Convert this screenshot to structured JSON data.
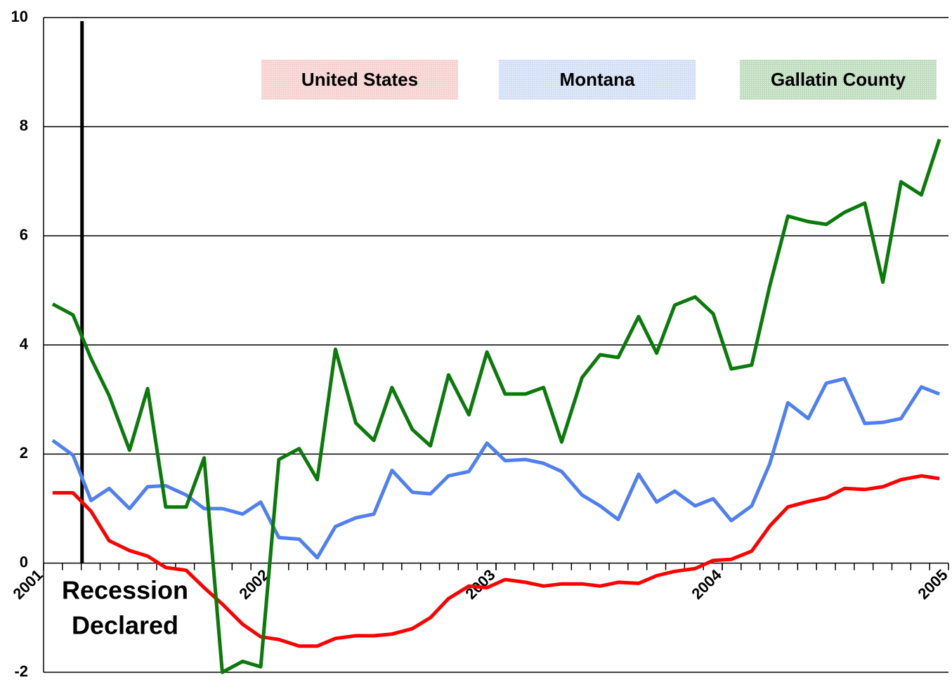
{
  "chart_data": {
    "type": "line",
    "x": [
      2001.04,
      2001.13,
      2001.21,
      2001.29,
      2001.38,
      2001.46,
      2001.54,
      2001.63,
      2001.71,
      2001.79,
      2001.88,
      2001.96,
      2002.04,
      2002.13,
      2002.21,
      2002.29,
      2002.38,
      2002.46,
      2002.54,
      2002.63,
      2002.71,
      2002.79,
      2002.88,
      2002.96,
      2003.04,
      2003.13,
      2003.21,
      2003.29,
      2003.38,
      2003.46,
      2003.54,
      2003.63,
      2003.71,
      2003.79,
      2003.88,
      2003.96,
      2004.04,
      2004.13,
      2004.21,
      2004.29,
      2004.38,
      2004.46,
      2004.54,
      2004.63,
      2004.71,
      2004.79,
      2004.88,
      2004.96
    ],
    "series": [
      {
        "name": "United States",
        "color": "#ff0000",
        "legend_color": "#f4b8b8",
        "values": [
          1.29,
          1.29,
          0.95,
          0.41,
          0.23,
          0.13,
          -0.08,
          -0.13,
          -0.45,
          -0.75,
          -1.12,
          -1.35,
          -1.4,
          -1.52,
          -1.52,
          -1.38,
          -1.33,
          -1.33,
          -1.3,
          -1.2,
          -1.0,
          -0.65,
          -0.42,
          -0.45,
          -0.3,
          -0.35,
          -0.42,
          -0.38,
          -0.38,
          -0.42,
          -0.35,
          -0.37,
          -0.23,
          -0.15,
          -0.1,
          0.05,
          0.07,
          0.22,
          0.68,
          1.03,
          1.13,
          1.2,
          1.37,
          1.35,
          1.4,
          1.53,
          1.6,
          1.55
        ]
      },
      {
        "name": "Montana",
        "color": "#4f7ff0",
        "legend_color": "#bcd0f4",
        "values": [
          2.25,
          1.98,
          1.15,
          1.37,
          1.0,
          1.4,
          1.42,
          1.25,
          1.0,
          1.0,
          0.9,
          1.12,
          0.47,
          0.44,
          0.1,
          0.67,
          0.83,
          0.9,
          1.7,
          1.3,
          1.27,
          1.6,
          1.68,
          2.2,
          1.88,
          1.9,
          1.83,
          1.68,
          1.25,
          1.05,
          0.8,
          1.63,
          1.12,
          1.32,
          1.05,
          1.18,
          0.78,
          1.05,
          1.82,
          2.94,
          2.65,
          3.3,
          3.38,
          2.56,
          2.58,
          2.65,
          3.23,
          3.1
        ]
      },
      {
        "name": "Gallatin County",
        "color": "#0a7a0a",
        "legend_color": "#9ccd9c",
        "values": [
          4.75,
          4.55,
          3.75,
          3.07,
          2.07,
          3.2,
          1.03,
          1.03,
          1.93,
          -2.0,
          -1.8,
          -1.9,
          1.9,
          2.1,
          1.53,
          3.92,
          2.57,
          2.25,
          3.22,
          2.45,
          2.15,
          3.45,
          2.72,
          3.87,
          3.1,
          3.1,
          3.22,
          2.22,
          3.4,
          3.82,
          3.77,
          4.52,
          3.85,
          4.73,
          4.88,
          4.57,
          3.56,
          3.63,
          5.08,
          6.36,
          6.26,
          6.21,
          6.43,
          6.6,
          5.15,
          6.99,
          6.75,
          7.77
        ]
      }
    ],
    "xlim": [
      2001,
      2005
    ],
    "xticks": [
      2001,
      2002,
      2003,
      2004,
      2005
    ],
    "ylim": [
      -2,
      10
    ],
    "yticks": [
      -2,
      0,
      2,
      4,
      6,
      8,
      10
    ],
    "grid": true,
    "legend": "top",
    "annotation": {
      "text": [
        "Recession",
        "Declared"
      ],
      "x": 2001.17
    }
  }
}
